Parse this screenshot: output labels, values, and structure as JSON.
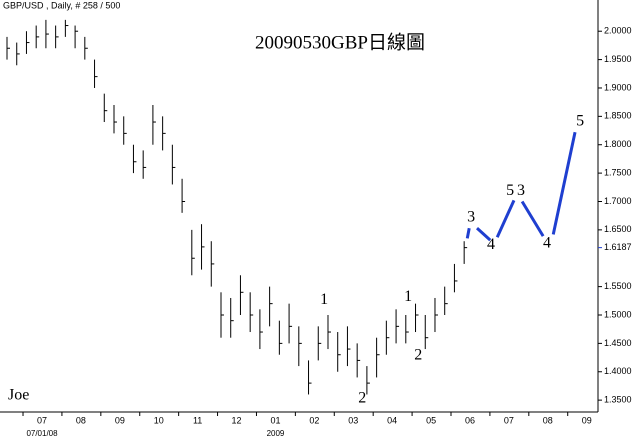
{
  "chart_data": {
    "type": "ohlc",
    "header": "GBP/USD , Daily, # 258 / 500",
    "title": "20090530GBP日線圖",
    "signature": "Joe",
    "x_sublabels": [
      {
        "value": 7,
        "label": "07/01/08"
      },
      {
        "value": 13,
        "label": "2009"
      }
    ],
    "xlim": [
      5.92,
      21.29
    ],
    "xticks": [
      {
        "value": 7,
        "label": "07"
      },
      {
        "value": 8,
        "label": "08"
      },
      {
        "value": 9,
        "label": "09"
      },
      {
        "value": 10,
        "label": "10"
      },
      {
        "value": 11,
        "label": "11"
      },
      {
        "value": 12,
        "label": "12"
      },
      {
        "value": 13,
        "label": "01"
      },
      {
        "value": 14,
        "label": "02"
      },
      {
        "value": 15,
        "label": "03"
      },
      {
        "value": 16,
        "label": "04"
      },
      {
        "value": 17,
        "label": "05"
      },
      {
        "value": 18,
        "label": "06"
      },
      {
        "value": 19,
        "label": "07"
      },
      {
        "value": 20,
        "label": "08"
      },
      {
        "value": 21,
        "label": "09"
      }
    ],
    "ylim": [
      1.315,
      2.055
    ],
    "yticks": [
      {
        "value": 2.0,
        "label": "2.0000"
      },
      {
        "value": 1.95,
        "label": "1.9500"
      },
      {
        "value": 1.9,
        "label": "1.9000"
      },
      {
        "value": 1.85,
        "label": "1.8500"
      },
      {
        "value": 1.8,
        "label": "1.8000"
      },
      {
        "value": 1.75,
        "label": "1.7500"
      },
      {
        "value": 1.7,
        "label": "1.7000"
      },
      {
        "value": 1.65,
        "label": "1.6500"
      },
      {
        "value": 1.55,
        "label": "1.5500"
      },
      {
        "value": 1.5,
        "label": "1.5000"
      },
      {
        "value": 1.45,
        "label": "1.4500"
      },
      {
        "value": 1.4,
        "label": "1.4000"
      },
      {
        "value": 1.35,
        "label": "1.3500"
      }
    ],
    "last_price": 1.6187,
    "last_price_color": "#1f3fd0",
    "bar_color": "#000000",
    "x": [
      6.1,
      6.35,
      6.6,
      6.85,
      7.1,
      7.35,
      7.6,
      7.85,
      8.1,
      8.35,
      8.6,
      8.85,
      9.1,
      9.35,
      9.6,
      9.85,
      10.1,
      10.35,
      10.6,
      10.85,
      11.1,
      11.35,
      11.6,
      11.85,
      12.1,
      12.35,
      12.6,
      12.85,
      13.1,
      13.35,
      13.6,
      13.85,
      14.1,
      14.35,
      14.6,
      14.85,
      15.1,
      15.35,
      15.6,
      15.85,
      16.1,
      16.35,
      16.6,
      16.85,
      17.1,
      17.35,
      17.6,
      17.85
    ],
    "high": [
      1.99,
      1.98,
      2.0,
      2.01,
      2.02,
      2.01,
      2.02,
      2.01,
      1.99,
      1.95,
      1.89,
      1.87,
      1.85,
      1.8,
      1.79,
      1.87,
      1.85,
      1.8,
      1.74,
      1.65,
      1.66,
      1.63,
      1.54,
      1.53,
      1.57,
      1.54,
      1.51,
      1.55,
      1.49,
      1.52,
      1.48,
      1.42,
      1.48,
      1.5,
      1.47,
      1.48,
      1.45,
      1.41,
      1.46,
      1.49,
      1.51,
      1.5,
      1.52,
      1.5,
      1.53,
      1.55,
      1.59,
      1.63
    ],
    "low": [
      1.95,
      1.94,
      1.96,
      1.97,
      1.97,
      1.97,
      1.99,
      1.97,
      1.95,
      1.9,
      1.84,
      1.82,
      1.8,
      1.75,
      1.74,
      1.8,
      1.79,
      1.73,
      1.68,
      1.57,
      1.58,
      1.55,
      1.46,
      1.46,
      1.5,
      1.47,
      1.44,
      1.48,
      1.43,
      1.45,
      1.41,
      1.36,
      1.42,
      1.44,
      1.4,
      1.41,
      1.39,
      1.36,
      1.39,
      1.43,
      1.45,
      1.45,
      1.47,
      1.44,
      1.47,
      1.5,
      1.54,
      1.59
    ],
    "close": [
      1.97,
      1.96,
      1.98,
      1.99,
      1.995,
      1.99,
      2.01,
      2.0,
      1.97,
      1.92,
      1.86,
      1.84,
      1.82,
      1.77,
      1.76,
      1.84,
      1.82,
      1.76,
      1.7,
      1.6,
      1.62,
      1.59,
      1.5,
      1.49,
      1.54,
      1.5,
      1.47,
      1.52,
      1.45,
      1.48,
      1.45,
      1.38,
      1.45,
      1.47,
      1.43,
      1.44,
      1.42,
      1.38,
      1.43,
      1.46,
      1.48,
      1.47,
      1.5,
      1.46,
      1.5,
      1.52,
      1.56,
      1.6187
    ],
    "projection": {
      "color": "#1f3fd0",
      "x": [
        17.93,
        17.98,
        null,
        18.18,
        18.52,
        null,
        18.7,
        19.13,
        null,
        19.34,
        19.88,
        null,
        20.14,
        20.7
      ],
      "values": [
        1.635,
        1.653,
        null,
        1.653,
        1.632,
        null,
        1.637,
        1.702,
        null,
        1.7,
        1.639,
        null,
        1.642,
        1.822
      ]
    },
    "annotations": [
      {
        "text": "1",
        "x": 14.25,
        "y": 1.526,
        "color": "#1f3fd0"
      },
      {
        "text": "2",
        "x": 15.23,
        "y": 1.352,
        "color": "#1f3fd0"
      },
      {
        "text": "1",
        "x": 16.41,
        "y": 1.531,
        "color": "#e01010"
      },
      {
        "text": "2",
        "x": 16.67,
        "y": 1.428,
        "color": "#e01010"
      },
      {
        "text": "3",
        "x": 18.03,
        "y": 1.671,
        "color": "#e01010"
      },
      {
        "text": "4",
        "x": 18.54,
        "y": 1.623,
        "color": "#e01010"
      },
      {
        "text": "5",
        "x": 19.03,
        "y": 1.718,
        "color": "#e01010"
      },
      {
        "text": "3",
        "x": 19.31,
        "y": 1.718,
        "color": "#1f3fd0"
      },
      {
        "text": "4",
        "x": 19.98,
        "y": 1.625,
        "color": "#1f3fd0"
      },
      {
        "text": "5",
        "x": 20.83,
        "y": 1.84,
        "color": "#1f3fd0"
      }
    ]
  }
}
